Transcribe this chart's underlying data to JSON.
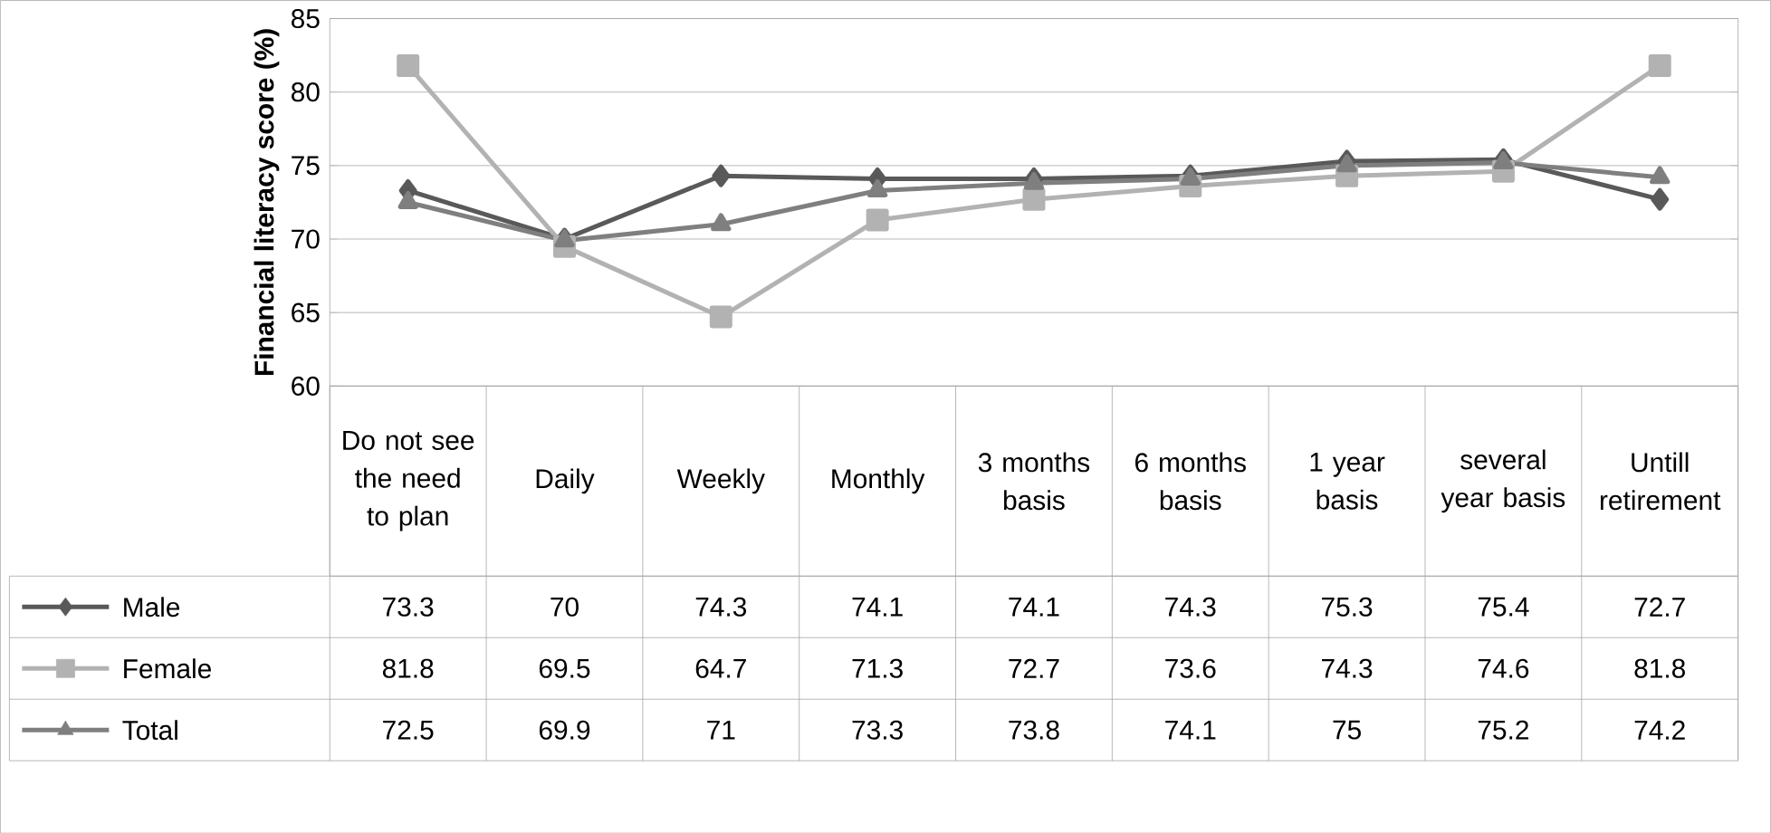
{
  "chart_data": {
    "type": "line",
    "ylabel": "Financial literacy score (%)",
    "categories": [
      "Do not see the need to plan",
      "Daily",
      "Weekly",
      "Monthly",
      "3 months basis",
      "6 months basis",
      "1 year basis",
      "several year basis",
      "Untill retirement"
    ],
    "series": [
      {
        "name": "Male",
        "color": "#595959",
        "marker": "diamond",
        "values": [
          73.3,
          70,
          74.3,
          74.1,
          74.1,
          74.3,
          75.3,
          75.4,
          72.7
        ]
      },
      {
        "name": "Female",
        "color": "#b2b2b2",
        "marker": "square",
        "values": [
          81.8,
          69.5,
          64.7,
          71.3,
          72.7,
          73.6,
          74.3,
          74.6,
          81.8
        ]
      },
      {
        "name": "Total",
        "color": "#7f7f7f",
        "marker": "triangle",
        "values": [
          72.5,
          69.9,
          71,
          73.3,
          73.8,
          74.1,
          75,
          75.2,
          74.2
        ]
      }
    ],
    "ylim": [
      60,
      85
    ],
    "yticks": [
      60,
      65,
      70,
      75,
      80,
      85
    ],
    "grid": "y",
    "data_labels": true,
    "legend": "bottom left"
  }
}
